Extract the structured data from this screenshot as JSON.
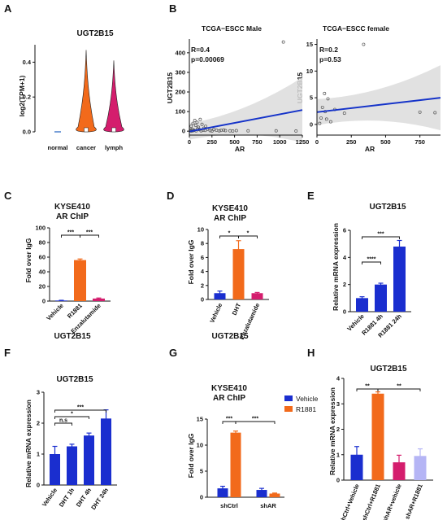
{
  "panels": {
    "A": {
      "letter": "A",
      "title": "UGT2B15",
      "ylabel": "log2(TPM+1)"
    },
    "B": {
      "letter": "B",
      "left": {
        "title": "TCGA−ESCC Male",
        "r": "R=0.4",
        "p": "p=0.00069",
        "ylabel": "UGT2B15",
        "xlabel": "AR"
      },
      "right": {
        "title": "TCGA−ESCC female",
        "r": "R=0.2",
        "p": "p=0.53",
        "ylabel": "UGT2B15",
        "xlabel": "AR"
      }
    },
    "C": {
      "letter": "C",
      "title1": "KYSE410",
      "title2": "AR ChIP",
      "ylabel": "Fold over IgG",
      "footer": "UGT2B15"
    },
    "D": {
      "letter": "D",
      "title1": "KYSE410",
      "title2": "AR ChIP",
      "ylabel": "Fold over IgG",
      "footer": "UGT2B15"
    },
    "E": {
      "letter": "E",
      "title": "UGT2B15",
      "ylabel": "Relative mRNA expression"
    },
    "F": {
      "letter": "F",
      "title": "UGT2B15",
      "ylabel": "Relative mRNA expression"
    },
    "G": {
      "letter": "G",
      "title1": "KYSE410",
      "title2": "AR ChIP",
      "ylabel": "Fold over IgG"
    },
    "H": {
      "letter": "H",
      "title": "UGT2B15",
      "ylabel": "Relative mRNA expression"
    }
  },
  "chart_data": [
    {
      "panel": "A",
      "type": "violin",
      "title": "UGT2B15",
      "ylabel": "log2(TPM+1)",
      "categories": [
        "normal",
        "cancer",
        "lymph"
      ],
      "ylim": [
        0,
        0.5
      ],
      "yticks": [
        0.0,
        0.2,
        0.4
      ],
      "series": [
        {
          "category": "normal",
          "max": 0.0,
          "color": "#1f5fbf"
        },
        {
          "category": "cancer",
          "max": 0.47,
          "color": "#f26a1b"
        },
        {
          "category": "lymph",
          "max": 0.41,
          "color": "#d41d6d"
        }
      ]
    },
    {
      "panel": "B-left",
      "type": "scatter",
      "title": "TCGA−ESCC Male",
      "xlabel": "AR",
      "ylabel": "UGT2B15",
      "xlim": [
        0,
        1250
      ],
      "ylim": [
        -20,
        470
      ],
      "xticks": [
        0,
        250,
        500,
        750,
        1000,
        1250
      ],
      "yticks": [
        0,
        100,
        200,
        300,
        400
      ],
      "annotation": [
        "R=0.4",
        "p=0.00069"
      ],
      "fit": {
        "x": [
          0,
          1250
        ],
        "y": [
          -2,
          108
        ],
        "color": "#1533c9"
      },
      "points": [
        [
          1040,
          455
        ],
        [
          20,
          25
        ],
        [
          40,
          40
        ],
        [
          60,
          55
        ],
        [
          70,
          30
        ],
        [
          85,
          45
        ],
        [
          100,
          20
        ],
        [
          120,
          60
        ],
        [
          140,
          35
        ],
        [
          160,
          15
        ],
        [
          180,
          25
        ],
        [
          30,
          10
        ],
        [
          50,
          5
        ],
        [
          90,
          12
        ],
        [
          110,
          8
        ],
        [
          150,
          5
        ],
        [
          200,
          10
        ],
        [
          230,
          3
        ],
        [
          270,
          8
        ],
        [
          300,
          5
        ],
        [
          350,
          4
        ],
        [
          400,
          3
        ],
        [
          450,
          2
        ],
        [
          520,
          3
        ],
        [
          650,
          2
        ],
        [
          960,
          2
        ],
        [
          1180,
          1
        ],
        [
          10,
          2
        ],
        [
          15,
          5
        ],
        [
          25,
          0
        ],
        [
          45,
          3
        ],
        [
          75,
          2
        ],
        [
          130,
          2
        ],
        [
          175,
          4
        ],
        [
          250,
          1
        ],
        [
          330,
          2
        ],
        [
          380,
          6
        ],
        [
          480,
          1
        ]
      ]
    },
    {
      "panel": "B-right",
      "type": "scatter",
      "title": "TCGA−ESCC female",
      "xlabel": "AR",
      "ylabel": "UGT2B15",
      "xlim": [
        0,
        900
      ],
      "ylim": [
        -2,
        16
      ],
      "xticks": [
        0,
        250,
        500,
        750
      ],
      "yticks": [
        0,
        5,
        10,
        15
      ],
      "annotation": [
        "R=0.2",
        "p=0.53"
      ],
      "fit": {
        "x": [
          0,
          900
        ],
        "y": [
          2.3,
          5.0
        ],
        "color": "#1533c9"
      },
      "points": [
        [
          340,
          15
        ],
        [
          55,
          5.8
        ],
        [
          40,
          3.2
        ],
        [
          80,
          4.8
        ],
        [
          60,
          2.4
        ],
        [
          30,
          1.2
        ],
        [
          70,
          1.0
        ],
        [
          100,
          0.5
        ],
        [
          20,
          0.2
        ],
        [
          130,
          2.8
        ],
        [
          750,
          2.3
        ],
        [
          860,
          2.2
        ],
        [
          200,
          2.1
        ]
      ]
    },
    {
      "panel": "C",
      "type": "bar",
      "title": "KYSE410 AR ChIP",
      "ylabel": "Fold over IgG",
      "categories": [
        "Vehicle",
        "R1881",
        "Enzalutamide"
      ],
      "values": [
        0.8,
        56,
        3.5
      ],
      "errors": [
        0.3,
        1.5,
        0.7
      ],
      "colors": [
        "#1a2ecf",
        "#f26a1b",
        "#d41d6d"
      ],
      "ylim": [
        0,
        100
      ],
      "yticks": [
        0,
        20,
        40,
        60,
        80,
        100
      ],
      "significance": [
        {
          "from": 0,
          "to": 1,
          "label": "***"
        },
        {
          "from": 1,
          "to": 2,
          "label": "***"
        }
      ],
      "footer": "UGT2B15"
    },
    {
      "panel": "D",
      "type": "bar",
      "title": "KYSE410 AR ChIP",
      "ylabel": "Fold over IgG",
      "categories": [
        "Vehicle",
        "DHT",
        "Enzalutamide"
      ],
      "values": [
        0.9,
        7.2,
        0.9
      ],
      "errors": [
        0.3,
        1.2,
        0.1
      ],
      "colors": [
        "#1a2ecf",
        "#f26a1b",
        "#d41d6d"
      ],
      "ylim": [
        0,
        10
      ],
      "yticks": [
        0,
        2,
        4,
        6,
        8,
        10
      ],
      "significance": [
        {
          "from": 0,
          "to": 1,
          "label": "*"
        },
        {
          "from": 1,
          "to": 2,
          "label": "*"
        }
      ],
      "footer": "UGT2B15"
    },
    {
      "panel": "E",
      "type": "bar",
      "title": "UGT2B15",
      "ylabel": "Relative mRNA expression",
      "categories": [
        "Vehicle",
        "R1881 4h",
        "R1881 24h"
      ],
      "values": [
        1.0,
        2.0,
        4.8
      ],
      "errors": [
        0.1,
        0.1,
        0.45
      ],
      "colors": [
        "#1a2ecf",
        "#1a2ecf",
        "#1a2ecf"
      ],
      "ylim": [
        0,
        6
      ],
      "yticks": [
        0,
        2,
        4,
        6
      ],
      "significance": [
        {
          "from": 0,
          "to": 1,
          "label": "****"
        },
        {
          "from": 0,
          "to": 2,
          "label": "***"
        }
      ]
    },
    {
      "panel": "F",
      "type": "bar",
      "title": "UGT2B15",
      "ylabel": "Relative mRNA expression",
      "categories": [
        "Vehicle",
        "DHT 1h",
        "DHT 4h",
        "DHT 24h"
      ],
      "values": [
        1.0,
        1.25,
        1.6,
        2.15
      ],
      "errors": [
        0.25,
        0.07,
        0.08,
        0.28
      ],
      "colors": [
        "#1a2ecf",
        "#1a2ecf",
        "#1a2ecf",
        "#1a2ecf"
      ],
      "ylim": [
        0,
        3
      ],
      "yticks": [
        0,
        1,
        2,
        3
      ],
      "significance": [
        {
          "from": 0,
          "to": 1,
          "label": "n.s"
        },
        {
          "from": 0,
          "to": 2,
          "label": "*"
        },
        {
          "from": 0,
          "to": 3,
          "label": "***"
        }
      ]
    },
    {
      "panel": "G",
      "type": "bar",
      "title": "KYSE410 AR ChIP",
      "ylabel": "Fold over IgG",
      "categories": [
        "shCtrl",
        "shAR"
      ],
      "series": [
        {
          "name": "Vehicle",
          "values": [
            1.7,
            1.4
          ],
          "errors": [
            0.4,
            0.3
          ],
          "color": "#1a2ecf"
        },
        {
          "name": "R1881",
          "values": [
            12.4,
            0.7
          ],
          "errors": [
            0.3,
            0.1
          ],
          "color": "#f26a1b"
        }
      ],
      "ylim": [
        0,
        15
      ],
      "yticks": [
        0,
        5,
        10,
        15
      ],
      "significance": [
        {
          "label": "***"
        },
        {
          "label": "***"
        }
      ],
      "legend": "top-right"
    },
    {
      "panel": "H",
      "type": "bar",
      "title": "UGT2B15",
      "ylabel": "Relative mRNA expression",
      "categories": [
        "shCtrl+Vehicle",
        "shCtrl+R1881",
        "shAR+vehicle",
        "shAR+R1881"
      ],
      "values": [
        1.0,
        3.4,
        0.7,
        0.95
      ],
      "errors": [
        0.32,
        0.07,
        0.28,
        0.28
      ],
      "colors": [
        "#1a2ecf",
        "#f26a1b",
        "#d41d6d",
        "#b5b5f5"
      ],
      "ylim": [
        0,
        4
      ],
      "yticks": [
        0,
        1,
        2,
        3,
        4
      ],
      "significance": [
        {
          "from": 0,
          "to": 1,
          "label": "**"
        },
        {
          "from": 1,
          "to": 3,
          "label": "**"
        }
      ]
    }
  ]
}
